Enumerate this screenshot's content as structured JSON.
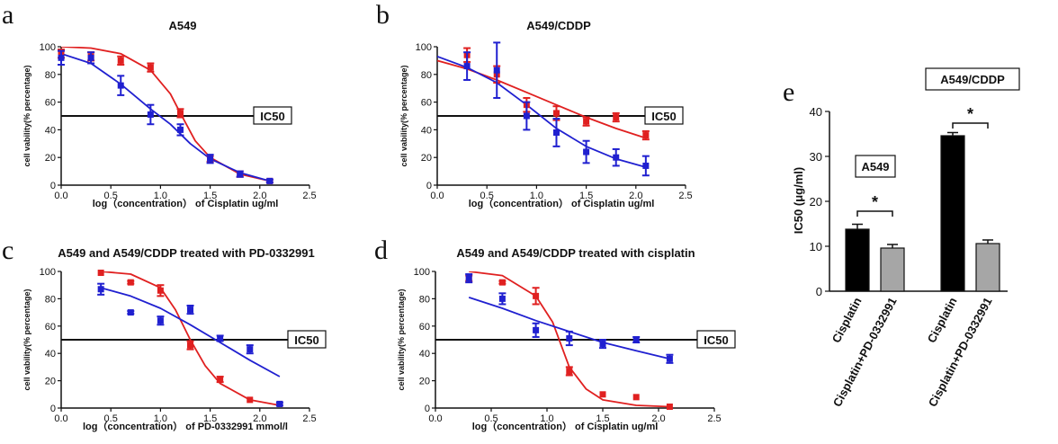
{
  "panel_letters": [
    "a",
    "b",
    "c",
    "d",
    "e"
  ],
  "ic50_label": "IC50",
  "chart_data": [
    {
      "panel": "a",
      "type": "line",
      "title": "A549",
      "xlabel": "log（concentration） of Cisplatin ug/ml",
      "ylabel": "cell vability(% percentage)",
      "xlim": [
        0,
        2.5
      ],
      "ylim": [
        0,
        100
      ],
      "xticks": [
        "0.0",
        "0.5",
        "1.0",
        "1.5",
        "2.0",
        "2.5"
      ],
      "yticks": [
        "0",
        "20",
        "40",
        "60",
        "80",
        "100"
      ],
      "reference_line": {
        "y": 50,
        "label": "IC50"
      },
      "series": [
        {
          "color": "#e02020",
          "x": [
            0,
            0.3,
            0.6,
            0.9,
            1.2,
            1.5,
            1.8,
            2.1
          ],
          "y": [
            95,
            93,
            90,
            85,
            52,
            19,
            8,
            3
          ],
          "err": [
            3,
            3,
            3,
            3,
            3,
            2,
            2,
            1
          ],
          "curve": [
            [
              0,
              100
            ],
            [
              0.3,
              99
            ],
            [
              0.6,
              95
            ],
            [
              0.9,
              83
            ],
            [
              1.1,
              66
            ],
            [
              1.2,
              52
            ],
            [
              1.35,
              32
            ],
            [
              1.5,
              20
            ],
            [
              1.8,
              8
            ],
            [
              2.1,
              3
            ]
          ]
        },
        {
          "color": "#2020d0",
          "x": [
            0,
            0.3,
            0.6,
            0.9,
            1.2,
            1.5,
            1.8,
            2.1
          ],
          "y": [
            92,
            92,
            72,
            51,
            40,
            19,
            8,
            3
          ],
          "err": [
            5,
            4,
            7,
            7,
            4,
            3,
            2,
            1
          ],
          "curve": [
            [
              0,
              95
            ],
            [
              0.3,
              88
            ],
            [
              0.6,
              73
            ],
            [
              0.9,
              55
            ],
            [
              1.1,
              44
            ],
            [
              1.3,
              30
            ],
            [
              1.5,
              19
            ],
            [
              1.8,
              9
            ],
            [
              2.1,
              3
            ]
          ]
        }
      ]
    },
    {
      "panel": "b",
      "type": "line",
      "title": "A549/CDDP",
      "xlabel": "log（concentration） of Cisplatin ug/ml",
      "ylabel": "cell vability(% percentage)",
      "xlim": [
        0,
        2.5
      ],
      "ylim": [
        0,
        100
      ],
      "xticks": [
        "0.0",
        "0.5",
        "1.0",
        "1.5",
        "2.0",
        "2.5"
      ],
      "yticks": [
        "0",
        "20",
        "40",
        "60",
        "80",
        "100"
      ],
      "reference_line": {
        "y": 50,
        "label": "IC50"
      },
      "series": [
        {
          "color": "#e02020",
          "x": [
            0.3,
            0.6,
            0.9,
            1.2,
            1.5,
            1.8,
            2.1
          ],
          "y": [
            94,
            80,
            58,
            52,
            46,
            49,
            36
          ],
          "err": [
            5,
            6,
            5,
            5,
            3,
            3,
            3
          ],
          "curve": [
            [
              0,
              90
            ],
            [
              0.3,
              84
            ],
            [
              0.6,
              76
            ],
            [
              0.9,
              67
            ],
            [
              1.2,
              58
            ],
            [
              1.5,
              49
            ],
            [
              1.8,
              41
            ],
            [
              2.1,
              34
            ]
          ]
        },
        {
          "color": "#2020d0",
          "x": [
            0.3,
            0.6,
            0.9,
            1.2,
            1.5,
            1.8,
            2.1
          ],
          "y": [
            86,
            83,
            50,
            38,
            24,
            20,
            14
          ],
          "err": [
            10,
            20,
            10,
            10,
            8,
            6,
            7
          ],
          "curve": [
            [
              0,
              93
            ],
            [
              0.3,
              85
            ],
            [
              0.6,
              74
            ],
            [
              0.9,
              58
            ],
            [
              1.2,
              41
            ],
            [
              1.5,
              28
            ],
            [
              1.8,
              19
            ],
            [
              2.1,
              13
            ]
          ]
        }
      ]
    },
    {
      "panel": "c",
      "type": "line",
      "title": "A549 and A549/CDDP treated with PD-0332991",
      "xlabel": "log（concentration） of  PD-0332991 mmol/l",
      "ylabel": "cell vability(% percentage)",
      "xlim": [
        0,
        2.5
      ],
      "ylim": [
        0,
        100
      ],
      "xticks": [
        "0.0",
        "0.5",
        "1.0",
        "1.5",
        "2.0",
        "2.5"
      ],
      "yticks": [
        "0",
        "20",
        "40",
        "60",
        "80",
        "100"
      ],
      "reference_line": {
        "y": 50,
        "label": "IC50"
      },
      "series": [
        {
          "color": "#e02020",
          "x": [
            0.4,
            0.7,
            1.0,
            1.3,
            1.6,
            1.9,
            2.2
          ],
          "y": [
            99,
            92,
            86,
            46,
            21,
            6,
            3
          ],
          "err": [
            0,
            1,
            4,
            3,
            2,
            0,
            0
          ],
          "curve": [
            [
              0.4,
              100
            ],
            [
              0.7,
              98
            ],
            [
              1.0,
              88
            ],
            [
              1.15,
              72
            ],
            [
              1.3,
              50
            ],
            [
              1.45,
              31
            ],
            [
              1.6,
              18
            ],
            [
              1.9,
              6
            ],
            [
              2.2,
              2
            ]
          ]
        },
        {
          "color": "#2020d0",
          "x": [
            0.4,
            0.7,
            1.0,
            1.3,
            1.6,
            1.9,
            2.2
          ],
          "y": [
            87,
            70,
            64,
            72,
            51,
            43,
            3
          ],
          "err": [
            4,
            1,
            3,
            3,
            2,
            3,
            1
          ],
          "curve": [
            [
              0.4,
              88
            ],
            [
              0.7,
              82
            ],
            [
              1.0,
              73
            ],
            [
              1.3,
              61
            ],
            [
              1.6,
              48
            ],
            [
              1.9,
              35
            ],
            [
              2.2,
              23
            ]
          ]
        }
      ]
    },
    {
      "panel": "d",
      "type": "line",
      "title": "A549 and A549/CDDP treated with cisplatin",
      "xlabel": "log（concentration） of Cisplatin ug/ml",
      "ylabel": "cell vability(% percentage)",
      "xlim": [
        0,
        2.5
      ],
      "ylim": [
        0,
        100
      ],
      "xticks": [
        "0.0",
        "0.5",
        "1.0",
        "1.5",
        "2.0",
        "2.5"
      ],
      "yticks": [
        "0",
        "20",
        "40",
        "60",
        "80",
        "100"
      ],
      "reference_line": {
        "y": 50,
        "label": "IC50"
      },
      "series": [
        {
          "color": "#e02020",
          "x": [
            0.3,
            0.6,
            0.9,
            1.2,
            1.5,
            1.8,
            2.1
          ],
          "y": [
            95,
            92,
            82,
            27,
            10,
            8,
            1
          ],
          "err": [
            2,
            1,
            6,
            3,
            0,
            0,
            0
          ],
          "curve": [
            [
              0.3,
              100
            ],
            [
              0.6,
              97
            ],
            [
              0.9,
              82
            ],
            [
              1.05,
              63
            ],
            [
              1.2,
              30
            ],
            [
              1.35,
              14
            ],
            [
              1.5,
              6
            ],
            [
              1.8,
              2
            ],
            [
              2.1,
              1
            ]
          ]
        },
        {
          "color": "#2020d0",
          "x": [
            0.3,
            0.6,
            0.9,
            1.2,
            1.5,
            1.8,
            2.1
          ],
          "y": [
            95,
            80,
            57,
            51,
            47,
            50,
            36
          ],
          "err": [
            3,
            4,
            5,
            5,
            3,
            2,
            3
          ],
          "curve": [
            [
              0.3,
              81
            ],
            [
              0.6,
              73
            ],
            [
              0.9,
              64
            ],
            [
              1.2,
              56
            ],
            [
              1.5,
              48
            ],
            [
              1.8,
              42
            ],
            [
              2.1,
              36
            ]
          ]
        }
      ]
    },
    {
      "panel": "e",
      "type": "bar",
      "title": "",
      "ylabel": "IC50 (μg/ml)",
      "ylim": [
        0,
        40
      ],
      "yticks": [
        "0",
        "10",
        "20",
        "30",
        "40"
      ],
      "categories": [
        "Cisplatin",
        "Cisplatin+PD-0332991",
        "Cisplatin",
        "Cisplatin+PD-0332991"
      ],
      "groups": [
        "A549",
        "A549/CDDP"
      ],
      "values": [
        13.8,
        9.6,
        34.6,
        10.6
      ],
      "errors": [
        1.1,
        0.8,
        0.7,
        0.8
      ],
      "colors": [
        "#000000",
        "#a6a6a6",
        "#000000",
        "#a6a6a6"
      ],
      "significance": [
        "*",
        "*"
      ]
    }
  ]
}
